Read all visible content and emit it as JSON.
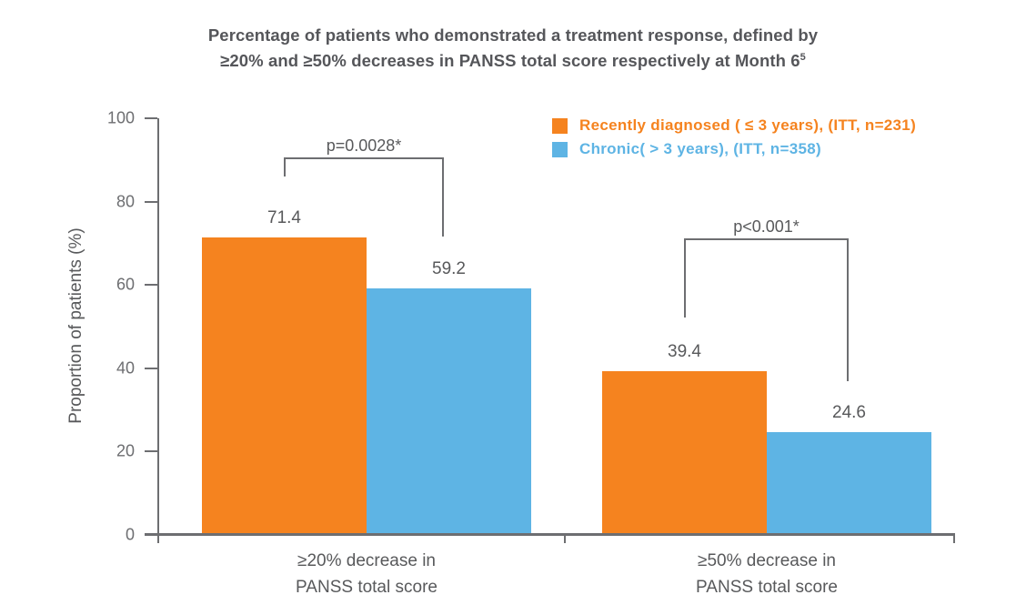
{
  "title": {
    "line1": "Percentage of patients who demonstrated a treatment response, defined by",
    "line2": "≥20% and ≥50% decreases in PANSS total score respectively at Month 6",
    "superscript": "5"
  },
  "axes": {
    "y_label": "Proportion of patients (%)",
    "y_ticks": [
      0,
      20,
      40,
      60,
      80,
      100
    ]
  },
  "legend": {
    "items": [
      {
        "label": "Recently diagnosed ( ≤ 3 years), (ITT, n=231)",
        "color": "#F5831F"
      },
      {
        "label": "Chronic( > 3 years), (ITT, n=358)",
        "color": "#5EB4E4"
      }
    ]
  },
  "chart_data": {
    "type": "bar",
    "title": "Percentage of patients who demonstrated a treatment response, defined by ≥20% and ≥50% decreases in PANSS total score respectively at Month 6⁵",
    "categories": [
      "≥20% decrease in PANSS total score",
      "≥50% decrease in PANSS total score"
    ],
    "category_labels_wrapped": [
      [
        "≥20% decrease in",
        "PANSS total score"
      ],
      [
        "≥50% decrease in",
        "PANSS total score"
      ]
    ],
    "series": [
      {
        "name": "Recently diagnosed ( ≤ 3 years), (ITT, n=231)",
        "color": "#F5831F",
        "values": [
          71.4,
          39.4
        ]
      },
      {
        "name": "Chronic( > 3 years), (ITT, n=358)",
        "color": "#5EB4E4",
        "values": [
          59.2,
          24.6
        ]
      }
    ],
    "xlabel": "",
    "ylabel": "Proportion of patients (%)",
    "ylim": [
      0,
      100
    ],
    "grid": false,
    "legend_position": "top-right",
    "annotations": [
      {
        "text": "p=0.0028*",
        "category": "≥20% decrease in PANSS total score"
      },
      {
        "text": "p<0.001*",
        "category": "≥50% decrease in PANSS total score"
      }
    ]
  },
  "colors": {
    "orange": "#F5831F",
    "blue": "#5EB4E4",
    "text_dark": "#58595B",
    "axis_gray": "#6D6E71"
  }
}
